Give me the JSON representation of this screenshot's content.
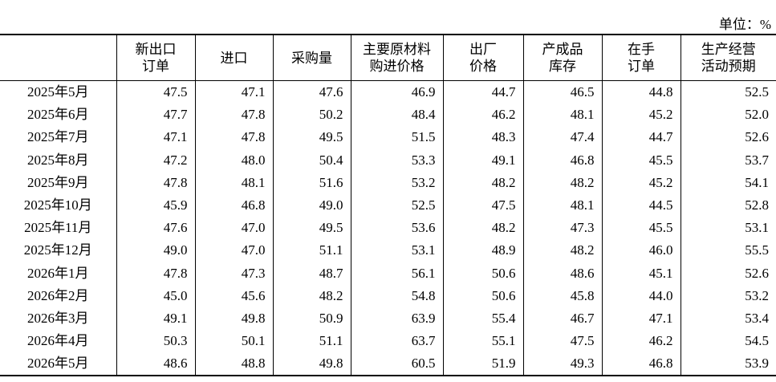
{
  "unit": "单位：%",
  "table": {
    "header": [
      [
        "新出口",
        "订单"
      ],
      [
        "进口"
      ],
      [
        "采购量"
      ],
      [
        "主要原材料",
        "购进价格"
      ],
      [
        "出厂",
        "价格"
      ],
      [
        "产成品",
        "库存"
      ],
      [
        "在手",
        "订单"
      ],
      [
        "生产经营",
        "活动预期"
      ]
    ],
    "rows": [
      [
        "2025年5月",
        "47.5",
        "47.1",
        "47.6",
        "46.9",
        "44.7",
        "46.5",
        "44.8",
        "52.5"
      ],
      [
        "2025年6月",
        "47.7",
        "47.8",
        "50.2",
        "48.4",
        "46.2",
        "48.1",
        "45.2",
        "52.0"
      ],
      [
        "2025年7月",
        "47.1",
        "47.8",
        "49.5",
        "51.5",
        "48.3",
        "47.4",
        "44.7",
        "52.6"
      ],
      [
        "2025年8月",
        "47.2",
        "48.0",
        "50.4",
        "53.3",
        "49.1",
        "46.8",
        "45.5",
        "53.7"
      ],
      [
        "2025年9月",
        "47.8",
        "48.1",
        "51.6",
        "53.2",
        "48.2",
        "48.2",
        "45.2",
        "54.1"
      ],
      [
        "2025年10月",
        "45.9",
        "46.8",
        "49.0",
        "52.5",
        "47.5",
        "48.1",
        "44.5",
        "52.8"
      ],
      [
        "2025年11月",
        "47.6",
        "47.0",
        "49.5",
        "53.6",
        "48.2",
        "47.3",
        "45.5",
        "53.1"
      ],
      [
        "2025年12月",
        "49.0",
        "47.0",
        "51.1",
        "53.1",
        "48.9",
        "48.2",
        "46.0",
        "55.5"
      ],
      [
        "2026年1月",
        "47.8",
        "47.3",
        "48.7",
        "56.1",
        "50.6",
        "48.6",
        "45.1",
        "52.6"
      ],
      [
        "2026年2月",
        "45.0",
        "45.6",
        "48.2",
        "54.8",
        "50.6",
        "45.8",
        "44.0",
        "53.2"
      ],
      [
        "2026年3月",
        "49.1",
        "49.8",
        "50.9",
        "63.9",
        "55.4",
        "46.7",
        "47.1",
        "53.4"
      ],
      [
        "2026年4月",
        "50.3",
        "50.1",
        "51.1",
        "63.7",
        "55.1",
        "47.5",
        "46.2",
        "54.5"
      ],
      [
        "2026年5月",
        "48.6",
        "48.8",
        "49.8",
        "60.5",
        "51.9",
        "49.3",
        "46.8",
        "53.9"
      ]
    ]
  }
}
